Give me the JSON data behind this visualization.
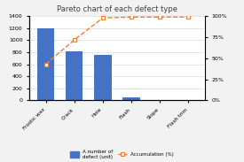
{
  "title": "Pareto chart of each defect type",
  "categories": [
    "Frostic wax",
    "Crack",
    "Hole",
    "Flash",
    "Slope",
    "Flash trim"
  ],
  "bar_values": [
    1200,
    820,
    760,
    50,
    0,
    0
  ],
  "accumulation": [
    43,
    72,
    98,
    99,
    99,
    99
  ],
  "bar_color": "#4472c4",
  "line_color": "#ed7d31",
  "ylim_left": [
    0,
    1400
  ],
  "ylim_right": [
    0,
    100
  ],
  "yticks_left": [
    0,
    200,
    400,
    600,
    800,
    1000,
    1200,
    1400
  ],
  "yticks_right": [
    0,
    25,
    50,
    75,
    100
  ],
  "yticklabels_right": [
    "0%",
    "25%",
    "50%",
    "75%",
    "100%"
  ],
  "legend_bar_label": "A number of\ndefect (unit)",
  "legend_line_label": "Accumulation (%)",
  "bg_color": "#f2f2f2",
  "plot_bg_color": "#ffffff",
  "grid_color": "#d9d9d9"
}
